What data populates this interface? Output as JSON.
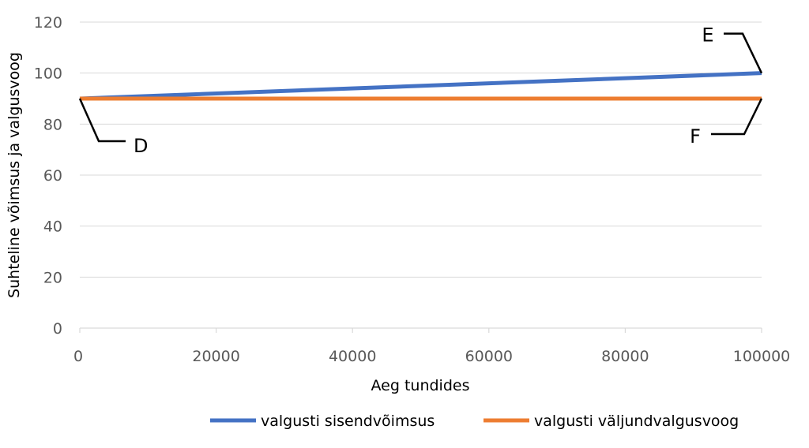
{
  "chart_data": {
    "type": "line",
    "xlabel": "Aeg tundides",
    "ylabel": "Suhteline võimsus ja valgusvoog",
    "xlim": [
      0,
      100000
    ],
    "ylim": [
      0,
      120
    ],
    "xticks": [
      0,
      20000,
      40000,
      60000,
      80000,
      100000
    ],
    "yticks": [
      0,
      20,
      40,
      60,
      80,
      100,
      120
    ],
    "grid": "horizontal",
    "legend_position": "bottom",
    "series": [
      {
        "name": "valgusti sisendvõimsus",
        "color": "#4472C4",
        "x": [
          0,
          100000
        ],
        "y": [
          90,
          100
        ]
      },
      {
        "name": "valgusti väljundvalgusvoog",
        "color": "#ED7D31",
        "x": [
          0,
          100000
        ],
        "y": [
          90,
          90
        ]
      }
    ],
    "annotations": [
      {
        "label": "D",
        "x": 0,
        "y": 90
      },
      {
        "label": "E",
        "x": 100000,
        "y": 100
      },
      {
        "label": "F",
        "x": 100000,
        "y": 90
      }
    ]
  }
}
